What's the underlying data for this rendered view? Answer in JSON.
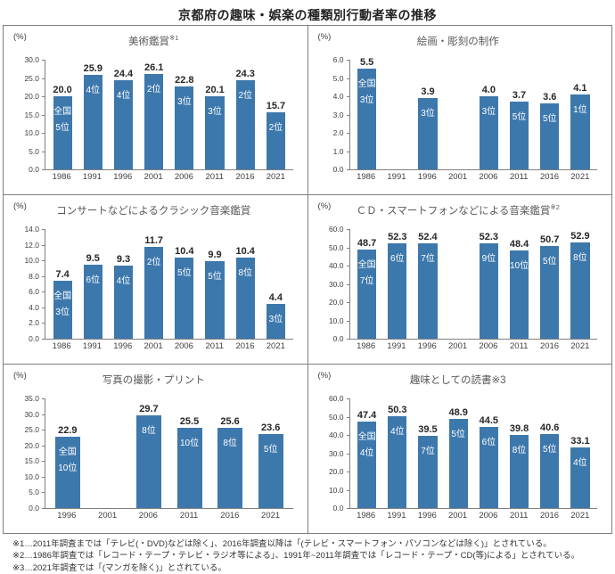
{
  "page_title": "京都府の趣味・娯楽の種類別行動者率の推移",
  "colors": {
    "bar": "#3D78AC",
    "bar_text": "#ffffff",
    "value_text": "#262626",
    "axis_line": "#808080",
    "axis_text": "#404040",
    "panel_border": "#7f7f7f",
    "title_text": "#595959"
  },
  "chart_data": [
    {
      "type": "bar",
      "title": "美術鑑賞",
      "note_marker": "※1",
      "note_superscript": true,
      "unit": "(%)",
      "ylim": [
        0,
        30
      ],
      "ystep": 5,
      "grid": false,
      "categories": [
        "1986",
        "1991",
        "1996",
        "2001",
        "2006",
        "2011",
        "2016",
        "2021"
      ],
      "values": [
        20.0,
        25.9,
        24.4,
        26.1,
        22.8,
        20.1,
        24.3,
        15.7
      ],
      "bar_labels": [
        [
          "全国",
          "5位"
        ],
        [
          "4位"
        ],
        [
          "4位"
        ],
        [
          "2位"
        ],
        [
          "3位"
        ],
        [
          "3位"
        ],
        [
          "2位"
        ],
        [
          "2位"
        ]
      ]
    },
    {
      "type": "bar",
      "title": "絵画・彫刻の制作",
      "note_marker": "",
      "note_superscript": false,
      "unit": "(%)",
      "ylim": [
        0,
        6
      ],
      "ystep": 1,
      "grid": false,
      "categories": [
        "1986",
        "1991",
        "1996",
        "2001",
        "2006",
        "2011",
        "2016",
        "2021"
      ],
      "values": [
        5.5,
        null,
        3.9,
        null,
        4.0,
        3.7,
        3.6,
        4.1
      ],
      "bar_labels": [
        [
          "全国",
          "3位"
        ],
        null,
        [
          "3位"
        ],
        null,
        [
          "3位"
        ],
        [
          "5位"
        ],
        [
          "5位"
        ],
        [
          "1位"
        ]
      ]
    },
    {
      "type": "bar",
      "title": "コンサートなどによるクラシック音楽鑑賞",
      "note_marker": "",
      "note_superscript": false,
      "unit": "(%)",
      "ylim": [
        0,
        14
      ],
      "ystep": 2,
      "grid": false,
      "categories": [
        "1986",
        "1991",
        "1996",
        "2001",
        "2006",
        "2011",
        "2016",
        "2021"
      ],
      "values": [
        7.4,
        9.5,
        9.3,
        11.7,
        10.4,
        9.9,
        10.4,
        4.4
      ],
      "bar_labels": [
        [
          "全国",
          "3位"
        ],
        [
          "6位"
        ],
        [
          "4位"
        ],
        [
          "2位"
        ],
        [
          "5位"
        ],
        [
          "5位"
        ],
        [
          "8位"
        ],
        [
          "3位"
        ]
      ]
    },
    {
      "type": "bar",
      "title": "ＣＤ・スマートフォンなどによる音楽鑑賞",
      "note_marker": "※2",
      "note_superscript": true,
      "unit": "(%)",
      "ylim": [
        0,
        60
      ],
      "ystep": 10,
      "grid": false,
      "categories": [
        "1986",
        "1991",
        "1996",
        "2001",
        "2006",
        "2011",
        "2016",
        "2021"
      ],
      "values": [
        48.7,
        52.3,
        52.4,
        null,
        52.3,
        48.4,
        50.7,
        52.9
      ],
      "bar_labels": [
        [
          "全国",
          "7位"
        ],
        [
          "6位"
        ],
        [
          "7位"
        ],
        null,
        [
          "9位"
        ],
        [
          "10位"
        ],
        [
          "5位"
        ],
        [
          "8位"
        ]
      ]
    },
    {
      "type": "bar",
      "title": "写真の撮影・プリント",
      "note_marker": "",
      "note_superscript": false,
      "unit": "(%)",
      "ylim": [
        0,
        35
      ],
      "ystep": 5,
      "grid": false,
      "categories": [
        "1996",
        "2001",
        "2006",
        "2011",
        "2016",
        "2021"
      ],
      "values": [
        22.9,
        null,
        29.7,
        25.5,
        25.6,
        23.6
      ],
      "bar_labels": [
        [
          "全国",
          "10位"
        ],
        null,
        [
          "8位"
        ],
        [
          "10位"
        ],
        [
          "8位"
        ],
        [
          "5位"
        ]
      ]
    },
    {
      "type": "bar",
      "title": "趣味としての読書",
      "note_marker": "※3",
      "note_superscript": false,
      "unit": "(%)",
      "ylim": [
        0,
        60
      ],
      "ystep": 10,
      "grid": false,
      "categories": [
        "1986",
        "1991",
        "1996",
        "2001",
        "2006",
        "2011",
        "2016",
        "2021"
      ],
      "values": [
        47.4,
        50.3,
        39.5,
        48.9,
        44.5,
        39.8,
        40.6,
        33.1
      ],
      "bar_labels": [
        [
          "全国",
          "4位"
        ],
        [
          "4位"
        ],
        [
          "7位"
        ],
        [
          "5位"
        ],
        [
          "6位"
        ],
        [
          "8位"
        ],
        [
          "5位"
        ],
        [
          "4位"
        ]
      ]
    }
  ],
  "footnotes": [
    "※1…2011年調査までは「テレビ(・DVD)などは除く」、2016年調査以降は「(テレビ・スマートフォン・パソコンなどは除く)」とされている。",
    "※2…1986年調査では「レコード・テープ・テレビ・ラジオ等による」、1991年~2011年調査では「レコード・テープ・CD(等)による」とされている。",
    "※3…2021年調査では「(マンガを除く)」とされている。"
  ]
}
